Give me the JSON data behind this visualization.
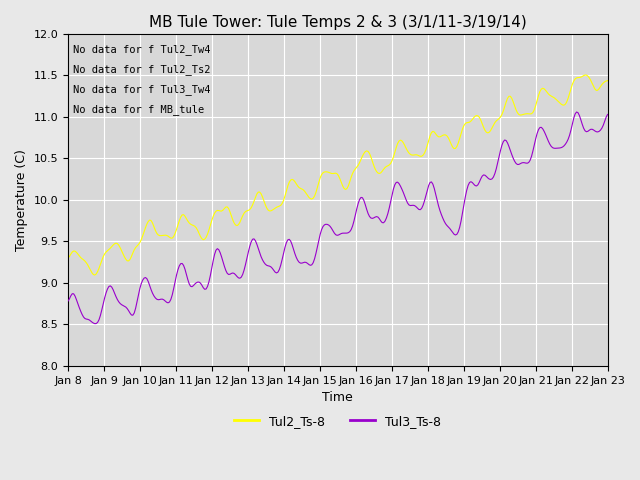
{
  "title": "MB Tule Tower: Tule Temps 2 & 3 (3/1/11-3/19/14)",
  "xlabel": "Time",
  "ylabel": "Temperature (C)",
  "ylim": [
    8.0,
    12.0
  ],
  "yticks": [
    8.0,
    8.5,
    9.0,
    9.5,
    10.0,
    10.5,
    11.0,
    11.5,
    12.0
  ],
  "legend_labels": [
    "Tul2_Ts-8",
    "Tul3_Ts-8"
  ],
  "legend_colors": [
    "#ffff00",
    "#9900cc"
  ],
  "line_colors": [
    "#ffff00",
    "#9900cc"
  ],
  "no_data_texts": [
    "No data for f Tul2_Tw4",
    "No data for f Tul2_Ts2",
    "No data for f Tul3_Tw4",
    "No data for f MB_tule"
  ],
  "xtick_labels": [
    "Jan 8",
    "Jan 9",
    "Jan 10",
    "Jan 11",
    "Jan 12",
    "Jan 13",
    "Jan 14",
    "Jan 15",
    "Jan 16",
    "Jan 17",
    "Jan 18",
    "Jan 19",
    "Jan 20",
    "Jan 21",
    "Jan 22",
    "Jan 23"
  ],
  "background_color": "#e8e8e8",
  "plot_bg_color": "#d8d8d8",
  "grid_color": "#ffffff",
  "title_fontsize": 11,
  "axis_fontsize": 9,
  "tick_fontsize": 8
}
